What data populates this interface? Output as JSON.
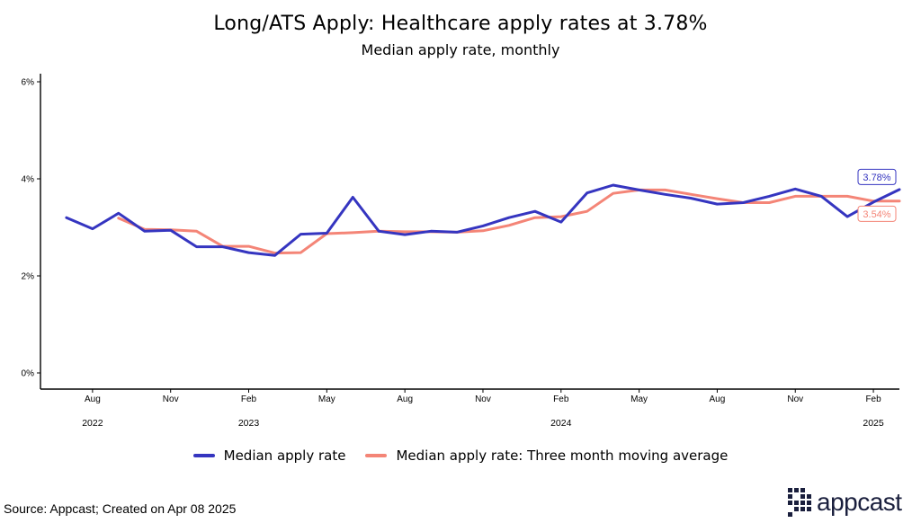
{
  "title": "Long/ATS Apply: Healthcare apply rates at 3.78%",
  "subtitle": "Median apply rate, monthly",
  "source": "Source: Appcast; Created on Apr 08 2025",
  "logo_text": "appcast",
  "colors": {
    "median": "#3535c0",
    "moving_avg": "#f48577",
    "axis": "#000000"
  },
  "chart_data": {
    "type": "line",
    "title": "Long/ATS Apply: Healthcare apply rates at 3.78%",
    "subtitle": "Median apply rate, monthly",
    "xlabel": "",
    "ylabel": "",
    "ylim": [
      0,
      6
    ],
    "yticks": [
      "0%",
      "2%",
      "4%",
      "6%"
    ],
    "ytick_values": [
      0,
      2,
      4,
      6
    ],
    "xlim": [
      "2022-06",
      "2025-03"
    ],
    "xtick_values": [
      "2022-08",
      "2022-11",
      "2023-02",
      "2023-05",
      "2023-08",
      "2023-11",
      "2024-02",
      "2024-05",
      "2024-08",
      "2024-11",
      "2025-02"
    ],
    "xticks": [
      "Aug",
      "Nov",
      "Feb",
      "May",
      "Aug",
      "Nov",
      "Feb",
      "May",
      "Aug",
      "Nov",
      "Feb"
    ],
    "year_values": [
      "2022-08",
      "2023-02",
      "2024-02",
      "2025-02"
    ],
    "years": [
      "2022",
      "2023",
      "2024",
      "2025"
    ],
    "grid": false,
    "legend_position": "bottom",
    "series": [
      {
        "name": "Median apply rate",
        "x": [
          "2022-07",
          "2022-08",
          "2022-09",
          "2022-10",
          "2022-11",
          "2022-12",
          "2023-01",
          "2023-02",
          "2023-03",
          "2023-04",
          "2023-05",
          "2023-06",
          "2023-07",
          "2023-08",
          "2023-09",
          "2023-10",
          "2023-11",
          "2023-12",
          "2024-01",
          "2024-02",
          "2024-03",
          "2024-04",
          "2024-05",
          "2024-06",
          "2024-07",
          "2024-08",
          "2024-09",
          "2024-10",
          "2024-11",
          "2024-12",
          "2025-01",
          "2025-02",
          "2025-03"
        ],
        "values": [
          3.2,
          2.97,
          3.29,
          2.92,
          2.94,
          2.6,
          2.6,
          2.48,
          2.42,
          2.86,
          2.88,
          3.62,
          2.92,
          2.85,
          2.92,
          2.9,
          3.03,
          3.2,
          3.33,
          3.11,
          3.71,
          3.87,
          3.77,
          3.68,
          3.6,
          3.48,
          3.51,
          3.64,
          3.79,
          3.64,
          3.22,
          3.52,
          3.78
        ]
      },
      {
        "name": "Median apply rate: Three month moving average",
        "x": [
          "2022-09",
          "2022-10",
          "2022-11",
          "2022-12",
          "2023-01",
          "2023-02",
          "2023-03",
          "2023-04",
          "2023-05",
          "2023-06",
          "2023-07",
          "2023-08",
          "2023-09",
          "2023-10",
          "2023-11",
          "2023-12",
          "2024-01",
          "2024-02",
          "2024-03",
          "2024-04",
          "2024-05",
          "2024-06",
          "2024-07",
          "2024-08",
          "2024-09",
          "2024-10",
          "2024-11",
          "2024-12",
          "2025-01",
          "2025-02",
          "2025-03"
        ],
        "values": [
          3.19,
          2.96,
          2.95,
          2.92,
          2.61,
          2.61,
          2.47,
          2.48,
          2.87,
          2.89,
          2.92,
          2.91,
          2.91,
          2.9,
          2.93,
          3.04,
          3.2,
          3.22,
          3.33,
          3.7,
          3.77,
          3.77,
          3.68,
          3.59,
          3.51,
          3.51,
          3.64,
          3.64,
          3.64,
          3.54,
          3.54
        ]
      }
    ],
    "end_labels": [
      {
        "series": 0,
        "text": "3.78%"
      },
      {
        "series": 1,
        "text": "3.54%"
      }
    ]
  }
}
